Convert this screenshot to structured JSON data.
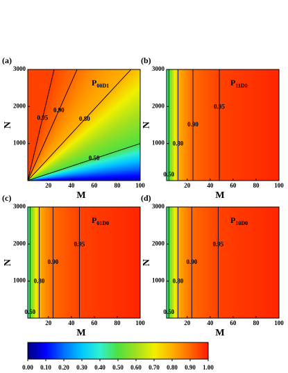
{
  "chart_data": [
    {
      "type": "contour-rays",
      "panel_label": "(a)",
      "title": "P",
      "title_sub": "00D1",
      "x_label": "M",
      "y_label": "N",
      "xlim": [
        2,
        100
      ],
      "ylim": [
        0,
        3000
      ],
      "xticks": [
        20,
        40,
        60,
        80,
        100
      ],
      "yticks": [
        1000,
        2000,
        3000
      ],
      "contours": [
        {
          "level": 0.95,
          "label": "0.95",
          "x": [
            2,
            25
          ],
          "y": [
            0,
            3000
          ]
        },
        {
          "level": 0.9,
          "label": "0.90",
          "x": [
            2,
            45
          ],
          "y": [
            0,
            3000
          ]
        },
        {
          "level": 0.8,
          "label": "0.80",
          "x": [
            2,
            92
          ],
          "y": [
            0,
            3000
          ]
        },
        {
          "level": 0.5,
          "label": "0.50",
          "x": [
            2,
            100
          ],
          "y": [
            0,
            1000
          ]
        }
      ]
    },
    {
      "type": "contour-vertical",
      "panel_label": "(b)",
      "title": "P",
      "title_sub": "11D0",
      "x_label": "M",
      "y_label": "N",
      "xlim": [
        2,
        100
      ],
      "ylim": [
        0,
        3000
      ],
      "xticks": [
        20,
        40,
        60,
        80,
        100
      ],
      "yticks": [
        1000,
        2000,
        3000
      ],
      "contours": [
        {
          "level": 0.5,
          "label": "0.50",
          "x": [
            4,
            4
          ],
          "y": [
            0,
            3000
          ]
        },
        {
          "level": 0.8,
          "label": "0.80",
          "x": [
            12,
            12
          ],
          "y": [
            0,
            3000
          ]
        },
        {
          "level": 0.9,
          "label": "0.90",
          "x": [
            25,
            25
          ],
          "y": [
            0,
            3000
          ]
        },
        {
          "level": 0.95,
          "label": "0.95",
          "x": [
            48,
            48
          ],
          "y": [
            0,
            3000
          ]
        }
      ]
    },
    {
      "type": "contour-vertical",
      "panel_label": "(c)",
      "title": "P",
      "title_sub": "01D0",
      "x_label": "M",
      "y_label": "N",
      "xlim": [
        2,
        100
      ],
      "ylim": [
        0,
        3000
      ],
      "xticks": [
        20,
        40,
        60,
        80,
        100
      ],
      "yticks": [
        1000,
        2000,
        3000
      ],
      "contours": [
        {
          "level": 0.5,
          "label": "0.50",
          "x": [
            4,
            4
          ],
          "y": [
            0,
            3000
          ]
        },
        {
          "level": 0.8,
          "label": "0.80",
          "x": [
            12,
            12
          ],
          "y": [
            0,
            3000
          ]
        },
        {
          "level": 0.9,
          "label": "0.90",
          "x": [
            24,
            24
          ],
          "y": [
            0,
            3000
          ]
        },
        {
          "level": 0.95,
          "label": "0.95",
          "x": [
            47,
            47
          ],
          "y": [
            0,
            3000
          ]
        }
      ]
    },
    {
      "type": "contour-vertical",
      "panel_label": "(d)",
      "title": "P",
      "title_sub": "10D0",
      "x_label": "M",
      "y_label": "N",
      "xlim": [
        2,
        100
      ],
      "ylim": [
        0,
        3000
      ],
      "xticks": [
        20,
        40,
        60,
        80,
        100
      ],
      "yticks": [
        1000,
        2000,
        3000
      ],
      "contours": [
        {
          "level": 0.5,
          "label": "0.50",
          "x": [
            4,
            4
          ],
          "y": [
            0,
            3000
          ]
        },
        {
          "level": 0.8,
          "label": "0.80",
          "x": [
            12,
            12
          ],
          "y": [
            0,
            3000
          ]
        },
        {
          "level": 0.9,
          "label": "0.90",
          "x": [
            24,
            24
          ],
          "y": [
            0,
            3000
          ]
        },
        {
          "level": 0.95,
          "label": "0.95",
          "x": [
            47,
            47
          ],
          "y": [
            0,
            3000
          ]
        }
      ]
    },
    {
      "type": "colorbar",
      "lim": [
        0,
        1
      ],
      "colormap": [
        "#00007f",
        "#0000ff",
        "#0070ff",
        "#00c8ff",
        "#30f0d0",
        "#50e040",
        "#a0e020",
        "#f0f000",
        "#ffb000",
        "#ff6a00",
        "#ff1a00"
      ],
      "ticks": [
        {
          "value": 0,
          "label": "0.00"
        },
        {
          "value": 0.1,
          "label": "0.10"
        },
        {
          "value": 0.2,
          "label": "0.20"
        },
        {
          "value": 0.3,
          "label": "0.30"
        },
        {
          "value": 0.4,
          "label": "0.40"
        },
        {
          "value": 0.5,
          "label": "0.50"
        },
        {
          "value": 0.6,
          "label": "0.60"
        },
        {
          "value": 0.7,
          "label": "0.70"
        },
        {
          "value": 0.8,
          "label": "0.80"
        },
        {
          "value": 0.9,
          "label": "0.90"
        },
        {
          "value": 1,
          "label": "1.00"
        }
      ]
    }
  ]
}
